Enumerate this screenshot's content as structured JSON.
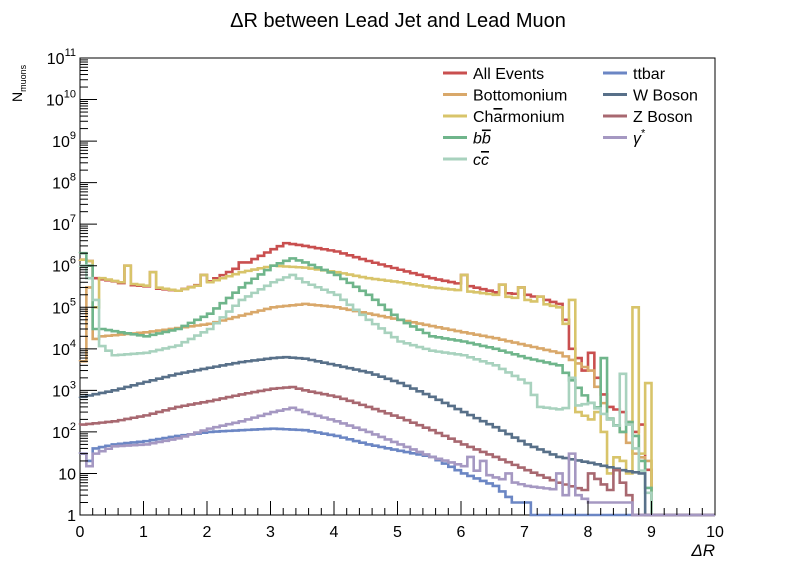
{
  "chart_data": {
    "type": "line",
    "style": "step-histogram",
    "title": "ΔR between Lead Jet and Lead Muon",
    "xlabel": "ΔR",
    "ylabel_main": "N",
    "ylabel_sub": "muons",
    "xlim": [
      0,
      10
    ],
    "ylim": [
      1,
      100000000000
    ],
    "log_y": true,
    "grid": false,
    "legend_position": "top-right",
    "bin_width": 0.1,
    "x_ticks": [
      {
        "value": 0,
        "label": "0"
      },
      {
        "value": 1,
        "label": "1"
      },
      {
        "value": 2,
        "label": "2"
      },
      {
        "value": 3,
        "label": "3"
      },
      {
        "value": 4,
        "label": "4"
      },
      {
        "value": 5,
        "label": "5"
      },
      {
        "value": 6,
        "label": "6"
      },
      {
        "value": 7,
        "label": "7"
      },
      {
        "value": 8,
        "label": "8"
      },
      {
        "value": 9,
        "label": "9"
      },
      {
        "value": 10,
        "label": "10"
      }
    ],
    "y_ticks": [
      {
        "value": 1,
        "base": "1",
        "exp": ""
      },
      {
        "value": 10,
        "base": "10",
        "exp": ""
      },
      {
        "value": 100,
        "base": "10",
        "exp": "2"
      },
      {
        "value": 1000,
        "base": "10",
        "exp": "3"
      },
      {
        "value": 10000,
        "base": "10",
        "exp": "4"
      },
      {
        "value": 100000,
        "base": "10",
        "exp": "5"
      },
      {
        "value": 1000000,
        "base": "10",
        "exp": "6"
      },
      {
        "value": 10000000,
        "base": "10",
        "exp": "7"
      },
      {
        "value": 100000000,
        "base": "10",
        "exp": "8"
      },
      {
        "value": 1000000000,
        "base": "10",
        "exp": "9"
      },
      {
        "value": 10000000000,
        "base": "10",
        "exp": "10"
      },
      {
        "value": 100000000000,
        "base": "10",
        "exp": "11"
      }
    ],
    "series": [
      {
        "name": "All Events",
        "color": "#c94f4f",
        "legend_parts": [
          {
            "t": "All Events"
          }
        ],
        "anchors": [
          [
            0,
            1400000
          ],
          [
            0.1,
            1300000
          ],
          [
            0.2,
            500000
          ],
          [
            0.5,
            420000
          ],
          [
            0.7,
            350000
          ],
          [
            1,
            320000
          ],
          [
            1.2,
            280000
          ],
          [
            1.5,
            250000
          ],
          [
            2,
            420000
          ],
          [
            2.5,
            1000000
          ],
          [
            3,
            2500000
          ],
          [
            3.2,
            3500000
          ],
          [
            3.5,
            3000000
          ],
          [
            4,
            2200000
          ],
          [
            4.5,
            1300000
          ],
          [
            5,
            800000
          ],
          [
            5.5,
            500000
          ],
          [
            6,
            350000
          ],
          [
            6.5,
            230000
          ],
          [
            7,
            200000
          ],
          [
            7.3,
            150000
          ],
          [
            7.5,
            120000
          ],
          [
            7.6,
            50000
          ],
          [
            7.7,
            10000
          ],
          [
            7.8,
            6000
          ],
          [
            7.9,
            3000
          ],
          [
            8,
            8000
          ],
          [
            8.1,
            2000
          ],
          [
            8.2,
            800
          ],
          [
            8.3,
            400
          ],
          [
            8.5,
            300
          ],
          [
            8.7,
            100
          ],
          [
            8.8,
            150
          ],
          [
            9,
            1
          ]
        ],
        "overrides": {
          "0.7": 1000000,
          "1.1": 700000,
          "1.9": 600000,
          "2.5": 1200000,
          "6": 600000,
          "6.6": 350000,
          "6.9": 300000,
          "7.2": 180000
        }
      },
      {
        "name": "Bottomonium",
        "color": "#d9a86a",
        "legend_parts": [
          {
            "t": "Bottomonium"
          }
        ],
        "anchors": [
          [
            0,
            5000
          ],
          [
            0.1,
            15000
          ],
          [
            0.3,
            20000
          ],
          [
            1,
            25000
          ],
          [
            2,
            40000
          ],
          [
            3,
            100000
          ],
          [
            3.5,
            120000
          ],
          [
            4,
            100000
          ],
          [
            5,
            50000
          ],
          [
            6,
            25000
          ],
          [
            6.5,
            18000
          ],
          [
            7,
            12000
          ],
          [
            7.5,
            8000
          ],
          [
            8,
            3000
          ],
          [
            8.3,
            200
          ],
          [
            8.5,
            100
          ],
          [
            8.7,
            30
          ],
          [
            8.9,
            20
          ],
          [
            9,
            1
          ]
        ],
        "overrides": {
          "0.1": 300000
        }
      },
      {
        "name": "Charmonium",
        "color": "#d8c46a",
        "legend_parts": [
          {
            "t": "Ch"
          },
          {
            "t": "a",
            "overline": true
          },
          {
            "t": "rmonium"
          }
        ],
        "anchors": [
          [
            0,
            1400000
          ],
          [
            0.1,
            1300000
          ],
          [
            0.3,
            500000
          ],
          [
            0.6,
            400000
          ],
          [
            1,
            330000
          ],
          [
            1.5,
            250000
          ],
          [
            2,
            400000
          ],
          [
            2.5,
            700000
          ],
          [
            3,
            1000000
          ],
          [
            3.5,
            900000
          ],
          [
            4,
            700000
          ],
          [
            4.5,
            500000
          ],
          [
            5,
            400000
          ],
          [
            5.5,
            300000
          ],
          [
            6,
            250000
          ],
          [
            6.5,
            200000
          ],
          [
            7,
            150000
          ],
          [
            7.5,
            100000
          ],
          [
            7.6,
            40000
          ],
          [
            7.7,
            800
          ],
          [
            7.8,
            300
          ],
          [
            8,
            200
          ],
          [
            8.1,
            300
          ],
          [
            8.2,
            100
          ],
          [
            8.3,
            30
          ],
          [
            8.5,
            20
          ],
          [
            8.6,
            10
          ],
          [
            8.7,
            100000
          ],
          [
            8.8,
            30
          ],
          [
            8.9,
            150
          ],
          [
            9,
            1
          ]
        ],
        "overrides": {
          "0.2": 100000,
          "0.7": 1000000,
          "1.1": 700000,
          "1.9": 600000,
          "6": 600000,
          "6.6": 350000,
          "6.9": 300000,
          "7.2": 180000,
          "7.7": 150000,
          "8.1": 300,
          "8.3": 10,
          "8.7": 100000,
          "8.9": 1500
        }
      },
      {
        "name": "bb",
        "color": "#6fb58b",
        "legend_parts": [
          {
            "t": "b",
            "italic": true
          },
          {
            "t": "b",
            "italic": true,
            "overline": true
          }
        ],
        "anchors": [
          [
            0,
            1000000
          ],
          [
            0.1,
            20000
          ],
          [
            0.3,
            30000
          ],
          [
            0.6,
            25000
          ],
          [
            1,
            20000
          ],
          [
            1.5,
            30000
          ],
          [
            2,
            70000
          ],
          [
            2.5,
            300000
          ],
          [
            3,
            1000000
          ],
          [
            3.3,
            1500000
          ],
          [
            3.5,
            1200000
          ],
          [
            4,
            600000
          ],
          [
            4.5,
            200000
          ],
          [
            5,
            50000
          ],
          [
            5.5,
            20000
          ],
          [
            6,
            15000
          ],
          [
            6.5,
            10000
          ],
          [
            7,
            6000
          ],
          [
            7.5,
            4000
          ],
          [
            8,
            500
          ],
          [
            8.2,
            300
          ],
          [
            8.5,
            100
          ],
          [
            8.7,
            300
          ],
          [
            8.8,
            20
          ],
          [
            9,
            1
          ]
        ],
        "overrides": {
          "0": 2000000,
          "0.1": 1000000,
          "0.2": 30000,
          "8.2": 6000,
          "8.7": 80
        }
      },
      {
        "name": "cc",
        "color": "#a8d2be",
        "legend_parts": [
          {
            "t": "c",
            "italic": true
          },
          {
            "t": "c",
            "italic": true,
            "overline": true
          }
        ],
        "anchors": [
          [
            0,
            1000000
          ],
          [
            0.1,
            500000
          ],
          [
            0.2,
            15000
          ],
          [
            0.5,
            7000
          ],
          [
            1,
            8000
          ],
          [
            1.5,
            12000
          ],
          [
            2,
            30000
          ],
          [
            2.5,
            150000
          ],
          [
            3,
            400000
          ],
          [
            3.3,
            600000
          ],
          [
            3.5,
            400000
          ],
          [
            4,
            200000
          ],
          [
            4.5,
            50000
          ],
          [
            5,
            15000
          ],
          [
            5.5,
            9000
          ],
          [
            6,
            7000
          ],
          [
            6.5,
            4000
          ],
          [
            7,
            1500
          ],
          [
            7.2,
            400
          ],
          [
            7.5,
            350
          ],
          [
            8,
            500
          ],
          [
            8.3,
            200
          ],
          [
            8.5,
            100
          ],
          [
            8.7,
            40
          ],
          [
            9,
            1
          ]
        ],
        "overrides": {
          "0.2": 150000,
          "7.7": 2000,
          "8.5": 2500,
          "8.6": 150
        }
      },
      {
        "name": "ttbar",
        "color": "#6b86c4",
        "legend_parts": [
          {
            "t": "ttbar"
          }
        ],
        "anchors": [
          [
            0,
            30
          ],
          [
            0.1,
            20
          ],
          [
            0.2,
            40
          ],
          [
            0.5,
            50
          ],
          [
            1,
            60
          ],
          [
            1.5,
            80
          ],
          [
            2,
            100
          ],
          [
            2.5,
            110
          ],
          [
            3,
            120
          ],
          [
            3.5,
            110
          ],
          [
            4,
            80
          ],
          [
            4.5,
            50
          ],
          [
            5,
            35
          ],
          [
            5.5,
            25
          ],
          [
            6,
            10
          ],
          [
            6.5,
            5
          ],
          [
            6.8,
            2
          ],
          [
            7,
            2
          ],
          [
            7.1,
            1
          ],
          [
            10,
            1
          ]
        ]
      },
      {
        "name": "W Boson",
        "color": "#587089",
        "legend_parts": [
          {
            "t": "W Boson"
          }
        ],
        "anchors": [
          [
            0,
            700
          ],
          [
            0.5,
            1000
          ],
          [
            1,
            1600
          ],
          [
            1.5,
            2500
          ],
          [
            2,
            3500
          ],
          [
            2.5,
            4800
          ],
          [
            3,
            6000
          ],
          [
            3.2,
            6300
          ],
          [
            3.5,
            5800
          ],
          [
            4,
            4000
          ],
          [
            4.5,
            2700
          ],
          [
            5,
            1500
          ],
          [
            5.5,
            700
          ],
          [
            6,
            300
          ],
          [
            6.5,
            130
          ],
          [
            7,
            50
          ],
          [
            7.5,
            25
          ],
          [
            8,
            18
          ],
          [
            8.5,
            12
          ],
          [
            8.8,
            10
          ],
          [
            8.9,
            1
          ]
        ]
      },
      {
        "name": "Z Boson",
        "color": "#a86870",
        "legend_parts": [
          {
            "t": "Z Boson"
          }
        ],
        "anchors": [
          [
            0,
            150
          ],
          [
            0.5,
            180
          ],
          [
            1,
            250
          ],
          [
            1.5,
            400
          ],
          [
            2,
            550
          ],
          [
            2.5,
            800
          ],
          [
            3,
            1100
          ],
          [
            3.3,
            1200
          ],
          [
            3.5,
            1000
          ],
          [
            4,
            700
          ],
          [
            4.5,
            400
          ],
          [
            5,
            220
          ],
          [
            5.5,
            110
          ],
          [
            6,
            50
          ],
          [
            6.5,
            25
          ],
          [
            7,
            12
          ],
          [
            7.5,
            6
          ],
          [
            7.9,
            4
          ],
          [
            8,
            10
          ],
          [
            8.3,
            4
          ],
          [
            8.6,
            3
          ],
          [
            8.7,
            1
          ]
        ],
        "overrides": {
          "8.4": 12,
          "8.5": 6
        }
      },
      {
        "name": "γ*",
        "color": "#a598c2",
        "legend_parts": [
          {
            "t": "γ",
            "italic": true
          },
          {
            "t": "*",
            "sup": true
          }
        ],
        "anchors": [
          [
            0,
            30
          ],
          [
            0.1,
            15
          ],
          [
            0.2,
            30
          ],
          [
            0.5,
            45
          ],
          [
            1,
            50
          ],
          [
            1.5,
            70
          ],
          [
            2,
            120
          ],
          [
            2.5,
            180
          ],
          [
            3,
            300
          ],
          [
            3.3,
            380
          ],
          [
            3.5,
            300
          ],
          [
            4,
            180
          ],
          [
            4.5,
            100
          ],
          [
            5,
            50
          ],
          [
            5.5,
            25
          ],
          [
            6,
            15
          ],
          [
            6.5,
            8
          ],
          [
            7,
            5
          ],
          [
            7.5,
            4
          ],
          [
            7.6,
            30
          ],
          [
            7.8,
            3
          ],
          [
            8,
            2
          ],
          [
            8.6,
            2
          ],
          [
            8.7,
            1
          ]
        ],
        "overrides": {
          "6.1": 25,
          "6.3": 20,
          "6.7": 10,
          "7.5": 10,
          "7.6": 3,
          "7.7": 30
        }
      }
    ]
  }
}
